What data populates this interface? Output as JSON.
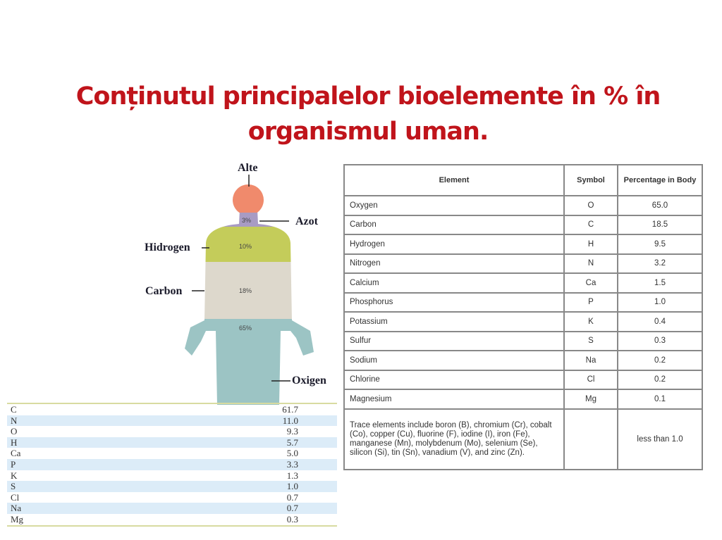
{
  "title": "Conținutul principalelor bioelemente în % în organismul uman.",
  "figure": {
    "labels": {
      "others": "Alte",
      "nitrogen": "Azot",
      "hydrogen": "Hidrogen",
      "carbon": "Carbon",
      "oxygen": "Oxigen"
    },
    "percentages": {
      "nitrogen": "3%",
      "hydrogen": "10%",
      "carbon": "18%",
      "oxygen": "65%"
    },
    "colors": {
      "others": "#f08a6c",
      "nitrogen": "#a89bc4",
      "hydrogen": "#c4cc5a",
      "carbon": "#ddd8cc",
      "oxygen": "#9cc4c4"
    }
  },
  "body_table": {
    "headers": [
      "Element",
      "Symbol",
      "Percentage in Body"
    ],
    "rows": [
      [
        "Oxygen",
        "O",
        "65.0"
      ],
      [
        "Carbon",
        "C",
        "18.5"
      ],
      [
        "Hydrogen",
        "H",
        "9.5"
      ],
      [
        "Nitrogen",
        "N",
        "3.2"
      ],
      [
        "Calcium",
        "Ca",
        "1.5"
      ],
      [
        "Phosphorus",
        "P",
        "1.0"
      ],
      [
        "Potassium",
        "K",
        "0.4"
      ],
      [
        "Sulfur",
        "S",
        "0.3"
      ],
      [
        "Sodium",
        "Na",
        "0.2"
      ],
      [
        "Chlorine",
        "Cl",
        "0.2"
      ],
      [
        "Magnesium",
        "Mg",
        "0.1"
      ],
      [
        "Trace elements include boron (B), chromium (Cr), cobalt (Co), copper (Cu), fluorine (F), iodine (I), iron (Fe), manganese (Mn), molybdenum (Mo), selenium (Se), silicon (Si), tin (Sn), vanadium (V), and zinc (Zn).",
        "",
        "less than 1.0"
      ]
    ]
  },
  "small_table": {
    "rows": [
      [
        "C",
        "61.7"
      ],
      [
        "N",
        "11.0"
      ],
      [
        "O",
        "9.3"
      ],
      [
        "H",
        "5.7"
      ],
      [
        "Ca",
        "5.0"
      ],
      [
        "P",
        "3.3"
      ],
      [
        "K",
        "1.3"
      ],
      [
        "S",
        "1.0"
      ],
      [
        "Cl",
        "0.7"
      ],
      [
        "Na",
        "0.7"
      ],
      [
        "Mg",
        "0.3"
      ]
    ]
  }
}
